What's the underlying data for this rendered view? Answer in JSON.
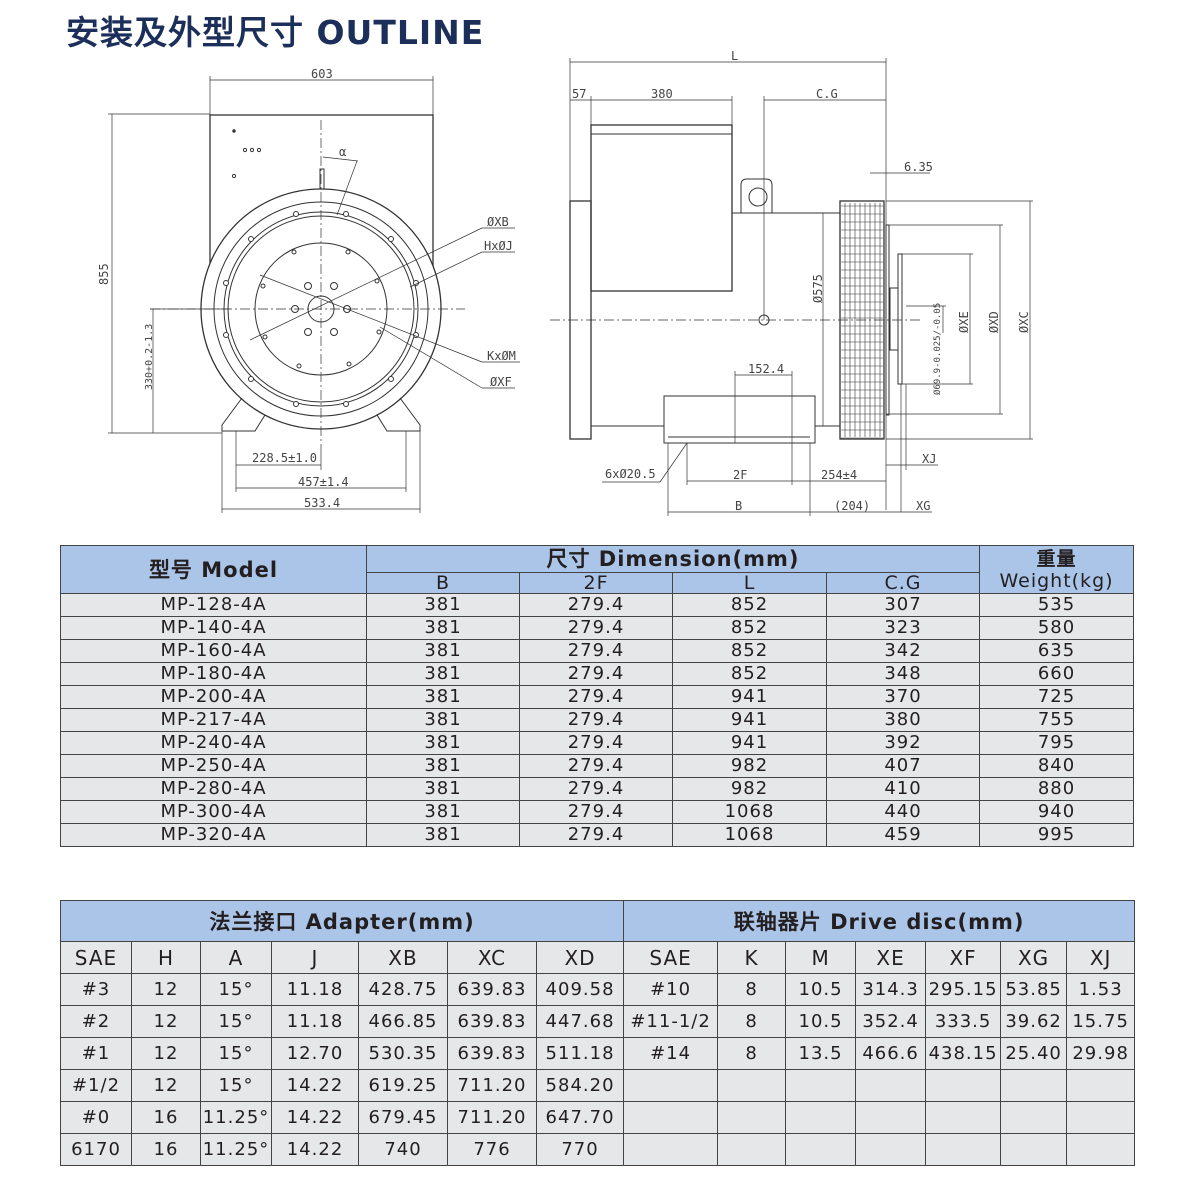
{
  "title": "安装及外型尺寸 OUTLINE",
  "drawing": {
    "front_view": {
      "width_label": "603",
      "height_label": "855",
      "shaft_height_label": "330+0.2-1.3",
      "angle_label": "α",
      "xb_label": "ØXB",
      "hj_label": "HxØJ",
      "km_label": "KxØM",
      "xf_label": "ØXF",
      "dim_1": "228.5±1.0",
      "dim_2": "457±1.4",
      "dim_3": "533.4"
    },
    "side_view": {
      "l_label": "L",
      "dim_57": "57",
      "dim_380": "380",
      "cg_label": "C.G",
      "dim_635": "6.35",
      "d575_label": "Ø575",
      "xe_label": "ØXE",
      "xd_label": "ØXD",
      "xc_label": "ØXC",
      "shaft_label": "Ø69.9-0.025/-0.05",
      "dim_1524": "152.4",
      "holes_label": "6xØ20.5",
      "f2_label": "2F",
      "dim_254": "254±4",
      "xj_label": "XJ",
      "b_label": "B",
      "dim_204": "(204)",
      "xg_label": "XG"
    }
  },
  "dimension_table": {
    "model_header": "型号  Model",
    "dimension_header": "尺寸 Dimension(mm)",
    "weight_header_cn": "重量",
    "weight_header_en": "Weight(kg)",
    "sub_headers": [
      "B",
      "2F",
      "L",
      "C.G"
    ],
    "rows": [
      [
        "MP-128-4A",
        "381",
        "279.4",
        "852",
        "307",
        "535"
      ],
      [
        "MP-140-4A",
        "381",
        "279.4",
        "852",
        "323",
        "580"
      ],
      [
        "MP-160-4A",
        "381",
        "279.4",
        "852",
        "342",
        "635"
      ],
      [
        "MP-180-4A",
        "381",
        "279.4",
        "852",
        "348",
        "660"
      ],
      [
        "MP-200-4A",
        "381",
        "279.4",
        "941",
        "370",
        "725"
      ],
      [
        "MP-217-4A",
        "381",
        "279.4",
        "941",
        "380",
        "755"
      ],
      [
        "MP-240-4A",
        "381",
        "279.4",
        "941",
        "392",
        "795"
      ],
      [
        "MP-250-4A",
        "381",
        "279.4",
        "982",
        "407",
        "840"
      ],
      [
        "MP-280-4A",
        "381",
        "279.4",
        "982",
        "410",
        "880"
      ],
      [
        "MP-300-4A",
        "381",
        "279.4",
        "1068",
        "440",
        "940"
      ],
      [
        "MP-320-4A",
        "381",
        "279.4",
        "1068",
        "459",
        "995"
      ]
    ]
  },
  "adapter_table": {
    "adapter_header": "法兰接口 Adapter(mm)",
    "drive_header": "联轴器片 Drive disc(mm)",
    "columns": [
      "SAE",
      "H",
      "A",
      "J",
      "XB",
      "XC",
      "XD",
      "SAE",
      "K",
      "M",
      "XE",
      "XF",
      "XG",
      "XJ"
    ],
    "rows": [
      [
        "#3",
        "12",
        "15°",
        "11.18",
        "428.75",
        "639.83",
        "409.58",
        "#10",
        "8",
        "10.5",
        "314.3",
        "295.15",
        "53.85",
        "1.53"
      ],
      [
        "#2",
        "12",
        "15°",
        "11.18",
        "466.85",
        "639.83",
        "447.68",
        "#11-1/2",
        "8",
        "10.5",
        "352.4",
        "333.5",
        "39.62",
        "15.75"
      ],
      [
        "#1",
        "12",
        "15°",
        "12.70",
        "530.35",
        "639.83",
        "511.18",
        "#14",
        "8",
        "13.5",
        "466.6",
        "438.15",
        "25.40",
        "29.98"
      ],
      [
        "#1/2",
        "12",
        "15°",
        "14.22",
        "619.25",
        "711.20",
        "584.20",
        "",
        "",
        "",
        "",
        "",
        "",
        ""
      ],
      [
        "#0",
        "16",
        "11.25°",
        "14.22",
        "679.45",
        "711.20",
        "647.70",
        "",
        "",
        "",
        "",
        "",
        "",
        ""
      ],
      [
        "6170",
        "16",
        "11.25°",
        "14.22",
        "740",
        "776",
        "770",
        "",
        "",
        "",
        "",
        "",
        "",
        ""
      ]
    ]
  },
  "colors": {
    "header_bg": "#abc5e8",
    "body_bg": "#e6e7e8",
    "title": "#1b2f5a"
  }
}
